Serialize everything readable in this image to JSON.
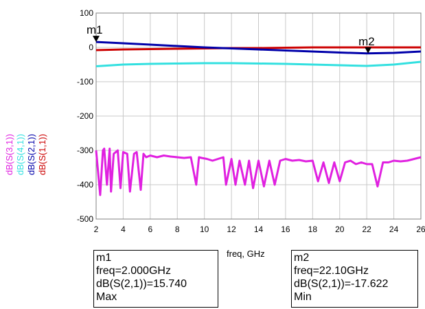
{
  "chart_data": {
    "type": "line",
    "xlabel": "freq, GHz",
    "xlim": [
      2,
      26
    ],
    "ylim": [
      -500,
      100
    ],
    "x_ticks": [
      "2",
      "4",
      "6",
      "8",
      "10",
      "12",
      "14",
      "16",
      "18",
      "20",
      "22",
      "24",
      "26"
    ],
    "y_ticks": [
      "100",
      "0",
      "-100",
      "-200",
      "-300",
      "-400",
      "-500"
    ],
    "grid": true,
    "series": [
      {
        "name": "dB(S(1,1))",
        "color": "#cc0000",
        "x": [
          2,
          4,
          6,
          8,
          10,
          12,
          14,
          16,
          18,
          20,
          22,
          24,
          26
        ],
        "y": [
          -8,
          -6,
          -5,
          -4,
          -3,
          -2,
          -2,
          -1,
          0,
          0,
          0,
          0,
          0
        ]
      },
      {
        "name": "dB(S(2,1))",
        "color": "#0000aa",
        "x": [
          2,
          4,
          6,
          8,
          10,
          12,
          14,
          16,
          18,
          20,
          22,
          24,
          26
        ],
        "y": [
          15.7,
          12,
          8,
          4,
          0,
          -3,
          -6,
          -9,
          -12,
          -15,
          -17.6,
          -16,
          -12
        ]
      },
      {
        "name": "dB(S(4,1))",
        "color": "#33e0e0",
        "x": [
          2,
          4,
          6,
          8,
          10,
          12,
          14,
          16,
          18,
          20,
          22,
          24,
          26
        ],
        "y": [
          -55,
          -50,
          -48,
          -47,
          -46,
          -46,
          -47,
          -48,
          -50,
          -52,
          -54,
          -50,
          -42
        ]
      },
      {
        "name": "dB(S(3,1))",
        "color": "#e020e0",
        "x": [
          2.0,
          2.3,
          2.5,
          2.6,
          2.8,
          3.0,
          3.1,
          3.3,
          3.6,
          3.8,
          4.0,
          4.3,
          4.5,
          4.8,
          5.0,
          5.3,
          5.5,
          5.7,
          6.0,
          6.5,
          7.0,
          7.5,
          8.0,
          8.5,
          9.0,
          9.4,
          9.6,
          9.8,
          10.2,
          10.6,
          11.0,
          11.4,
          11.6,
          12.0,
          12.3,
          12.6,
          13.0,
          13.3,
          13.6,
          14.0,
          14.4,
          14.8,
          15.2,
          15.6,
          16.0,
          16.5,
          17.0,
          17.5,
          18.0,
          18.4,
          18.8,
          19.2,
          19.6,
          20.0,
          20.4,
          20.8,
          21.2,
          21.6,
          22.0,
          22.4,
          22.8,
          23.2,
          23.6,
          24.0,
          24.5,
          25.0,
          25.5,
          26.0
        ],
        "y": [
          -300,
          -430,
          -300,
          -295,
          -400,
          -295,
          -420,
          -310,
          -300,
          -410,
          -305,
          -310,
          -420,
          -310,
          -305,
          -415,
          -310,
          -320,
          -315,
          -320,
          -315,
          -318,
          -320,
          -322,
          -320,
          -400,
          -320,
          -322,
          -325,
          -330,
          -325,
          -320,
          -400,
          -325,
          -400,
          -330,
          -400,
          -330,
          -410,
          -330,
          -405,
          -330,
          -400,
          -330,
          -325,
          -330,
          -328,
          -332,
          -330,
          -390,
          -335,
          -395,
          -335,
          -390,
          -335,
          -330,
          -340,
          -335,
          -340,
          -340,
          -405,
          -335,
          -335,
          -330,
          -332,
          -330,
          -325,
          -320
        ]
      }
    ],
    "legend": [
      "dB(S(3,1))",
      "dB(S(4,1))",
      "dB(S(2,1))",
      "dB(S(1,1))"
    ],
    "markers": [
      {
        "name": "m1",
        "x": 2.0,
        "y": 15.74
      },
      {
        "name": "m2",
        "x": 22.1,
        "y": -17.622
      }
    ]
  },
  "marker_readouts": [
    {
      "name": "m1",
      "freq": "freq=2.000GHz",
      "value": "dB(S(2,1))=15.740",
      "kind": "Max"
    },
    {
      "name": "m2",
      "freq": "freq=22.10GHz",
      "value": "dB(S(2,1))=-17.622",
      "kind": "Min"
    }
  ]
}
